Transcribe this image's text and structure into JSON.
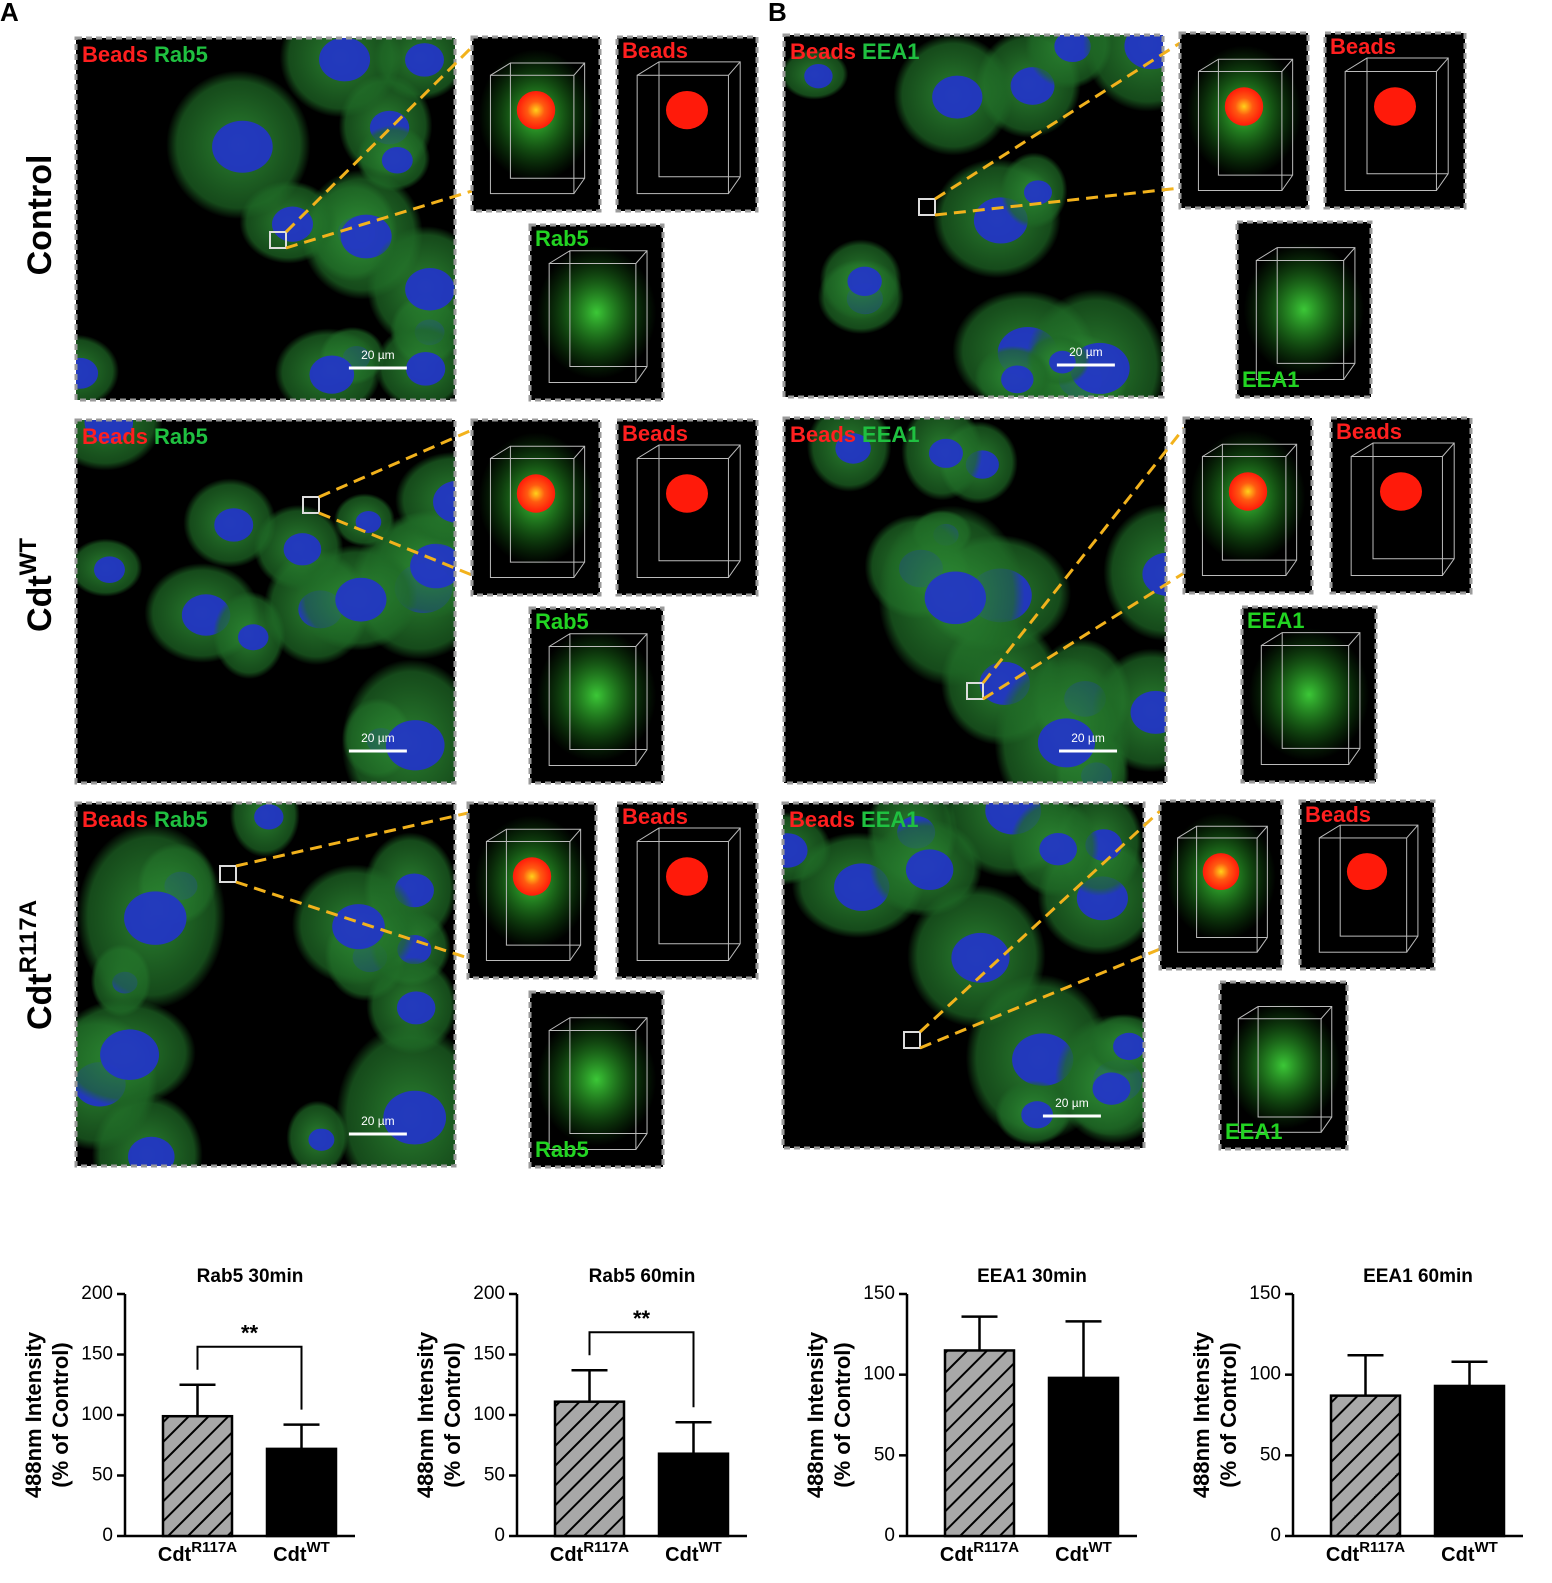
{
  "figure": {
    "panels": [
      {
        "label": "A",
        "stains": [
          "Beads",
          "Rab5"
        ],
        "scale_bar": "20 µm"
      },
      {
        "label": "B",
        "stains": [
          "Beads",
          "EEA1"
        ],
        "scale_bar": "20 µm"
      }
    ],
    "row_labels": [
      {
        "text": "Control"
      },
      {
        "text": "Cdt",
        "sup": "WT"
      },
      {
        "text": "Cdt",
        "sup": "R117A"
      }
    ]
  },
  "chart_data": [
    {
      "type": "bar",
      "title": "Rab5 30min",
      "ylabel": [
        "488nm Intensity",
        "(% of Control)"
      ],
      "categories": [
        {
          "text": "Cdt",
          "sup": "R117A"
        },
        {
          "text": "Cdt",
          "sup": "WT"
        }
      ],
      "values": [
        99,
        72
      ],
      "errors": [
        26,
        20
      ],
      "colors": [
        "#a8a8a8",
        "#000000"
      ],
      "hatch": [
        true,
        false
      ],
      "ylim": [
        0,
        200
      ],
      "yticks": [
        0,
        50,
        100,
        150,
        200
      ],
      "significance": "**"
    },
    {
      "type": "bar",
      "title": "Rab5 60min",
      "ylabel": [
        "488nm Intensity",
        "(% of Control)"
      ],
      "categories": [
        {
          "text": "Cdt",
          "sup": "R117A"
        },
        {
          "text": "Cdt",
          "sup": "WT"
        }
      ],
      "values": [
        111,
        68
      ],
      "errors": [
        26,
        26
      ],
      "colors": [
        "#a8a8a8",
        "#000000"
      ],
      "hatch": [
        true,
        false
      ],
      "ylim": [
        0,
        200
      ],
      "yticks": [
        0,
        50,
        100,
        150,
        200
      ],
      "significance": "**"
    },
    {
      "type": "bar",
      "title": "EEA1 30min",
      "ylabel": [
        "488nm Intensity",
        "(% of Control)"
      ],
      "categories": [
        {
          "text": "Cdt",
          "sup": "R117A"
        },
        {
          "text": "Cdt",
          "sup": "WT"
        }
      ],
      "values": [
        115,
        98
      ],
      "errors": [
        21,
        35
      ],
      "colors": [
        "#a8a8a8",
        "#000000"
      ],
      "hatch": [
        true,
        false
      ],
      "ylim": [
        0,
        150
      ],
      "yticks": [
        0,
        50,
        100,
        150
      ]
    },
    {
      "type": "bar",
      "title": "EEA1 60min",
      "ylabel": [
        "488nm Intensity",
        "(% of Control)"
      ],
      "categories": [
        {
          "text": "Cdt",
          "sup": "R117A"
        },
        {
          "text": "Cdt",
          "sup": "WT"
        }
      ],
      "values": [
        87,
        93
      ],
      "errors": [
        25,
        15
      ],
      "colors": [
        "#a8a8a8",
        "#000000"
      ],
      "hatch": [
        true,
        false
      ],
      "ylim": [
        0,
        150
      ],
      "yticks": [
        0,
        50,
        100,
        150
      ]
    }
  ]
}
